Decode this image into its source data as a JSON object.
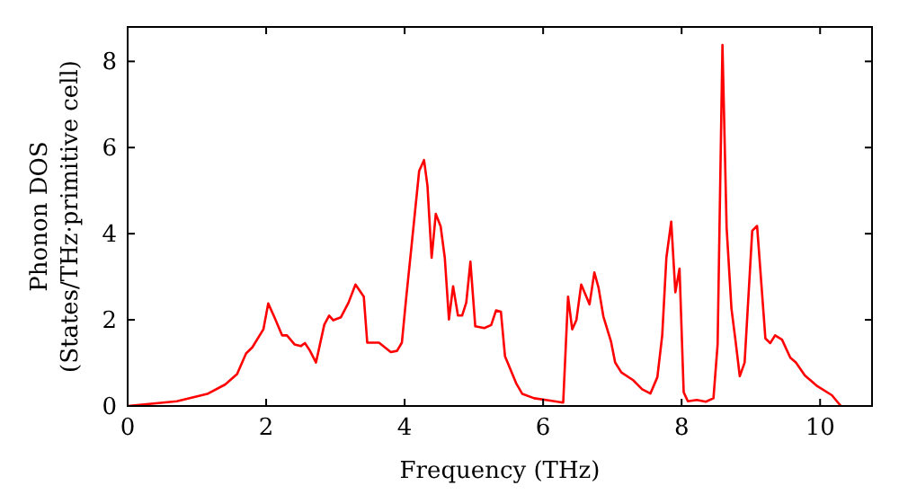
{
  "chart_data": {
    "type": "line",
    "xlabel": "Frequency (THz)",
    "ylabel": "Phonon DOS\n(States/THz·primitive cell)",
    "xlim": [
      0,
      10.75
    ],
    "ylim": [
      0,
      8.8
    ],
    "xticks": [
      0,
      2,
      4,
      6,
      8,
      10
    ],
    "yticks": [
      0,
      2,
      4,
      6,
      8
    ],
    "grid": false,
    "marker": "none",
    "line_style": "solid",
    "series": [
      {
        "color": "#ff0000",
        "x": [
          0,
          0.71,
          1.15,
          1.41,
          1.58,
          1.71,
          1.8,
          1.96,
          2.03,
          2.12,
          2.23,
          2.3,
          2.41,
          2.5,
          2.56,
          2.63,
          2.72,
          2.84,
          2.91,
          2.97,
          3.08,
          3.19,
          3.29,
          3.41,
          3.46,
          3.63,
          3.8,
          3.89,
          3.96,
          4.02,
          4.1,
          4.21,
          4.28,
          4.33,
          4.39,
          4.45,
          4.52,
          4.58,
          4.64,
          4.7,
          4.77,
          4.83,
          4.89,
          4.95,
          5.02,
          5.15,
          5.25,
          5.32,
          5.39,
          5.45,
          5.52,
          5.61,
          5.7,
          5.87,
          6.04,
          6.29,
          6.36,
          6.42,
          6.48,
          6.55,
          6.67,
          6.74,
          6.8,
          6.87,
          6.98,
          7.04,
          7.13,
          7.3,
          7.43,
          7.55,
          7.65,
          7.72,
          7.78,
          7.85,
          7.91,
          7.97,
          8.03,
          8.09,
          8.22,
          8.35,
          8.46,
          8.52,
          8.59,
          8.65,
          8.72,
          8.78,
          8.84,
          8.91,
          9.02,
          9.09,
          9.21,
          9.28,
          9.35,
          9.45,
          9.57,
          9.65,
          9.78,
          9.96,
          10.17,
          10.3
        ],
        "values": [
          0,
          0.11,
          0.28,
          0.5,
          0.74,
          1.22,
          1.36,
          1.78,
          2.38,
          2.06,
          1.64,
          1.64,
          1.43,
          1.39,
          1.46,
          1.29,
          1.01,
          1.89,
          2.1,
          1.99,
          2.06,
          2.4,
          2.82,
          2.54,
          1.47,
          1.47,
          1.25,
          1.28,
          1.47,
          2.47,
          3.72,
          5.46,
          5.71,
          5.11,
          3.44,
          4.46,
          4.17,
          3.44,
          2.01,
          2.78,
          2.1,
          2.1,
          2.4,
          3.35,
          1.85,
          1.81,
          1.88,
          2.22,
          2.19,
          1.15,
          0.88,
          0.53,
          0.28,
          0.18,
          0.14,
          0.08,
          2.54,
          1.78,
          1.99,
          2.82,
          2.36,
          3.1,
          2.75,
          2.08,
          1.5,
          1.01,
          0.78,
          0.6,
          0.39,
          0.29,
          0.67,
          1.64,
          3.44,
          4.28,
          2.64,
          3.19,
          0.32,
          0.11,
          0.14,
          0.1,
          0.18,
          1.43,
          8.38,
          4.14,
          2.26,
          1.5,
          0.69,
          1.01,
          4.07,
          4.18,
          1.57,
          1.46,
          1.64,
          1.54,
          1.12,
          1.01,
          0.71,
          0.46,
          0.25,
          0
        ]
      }
    ]
  }
}
